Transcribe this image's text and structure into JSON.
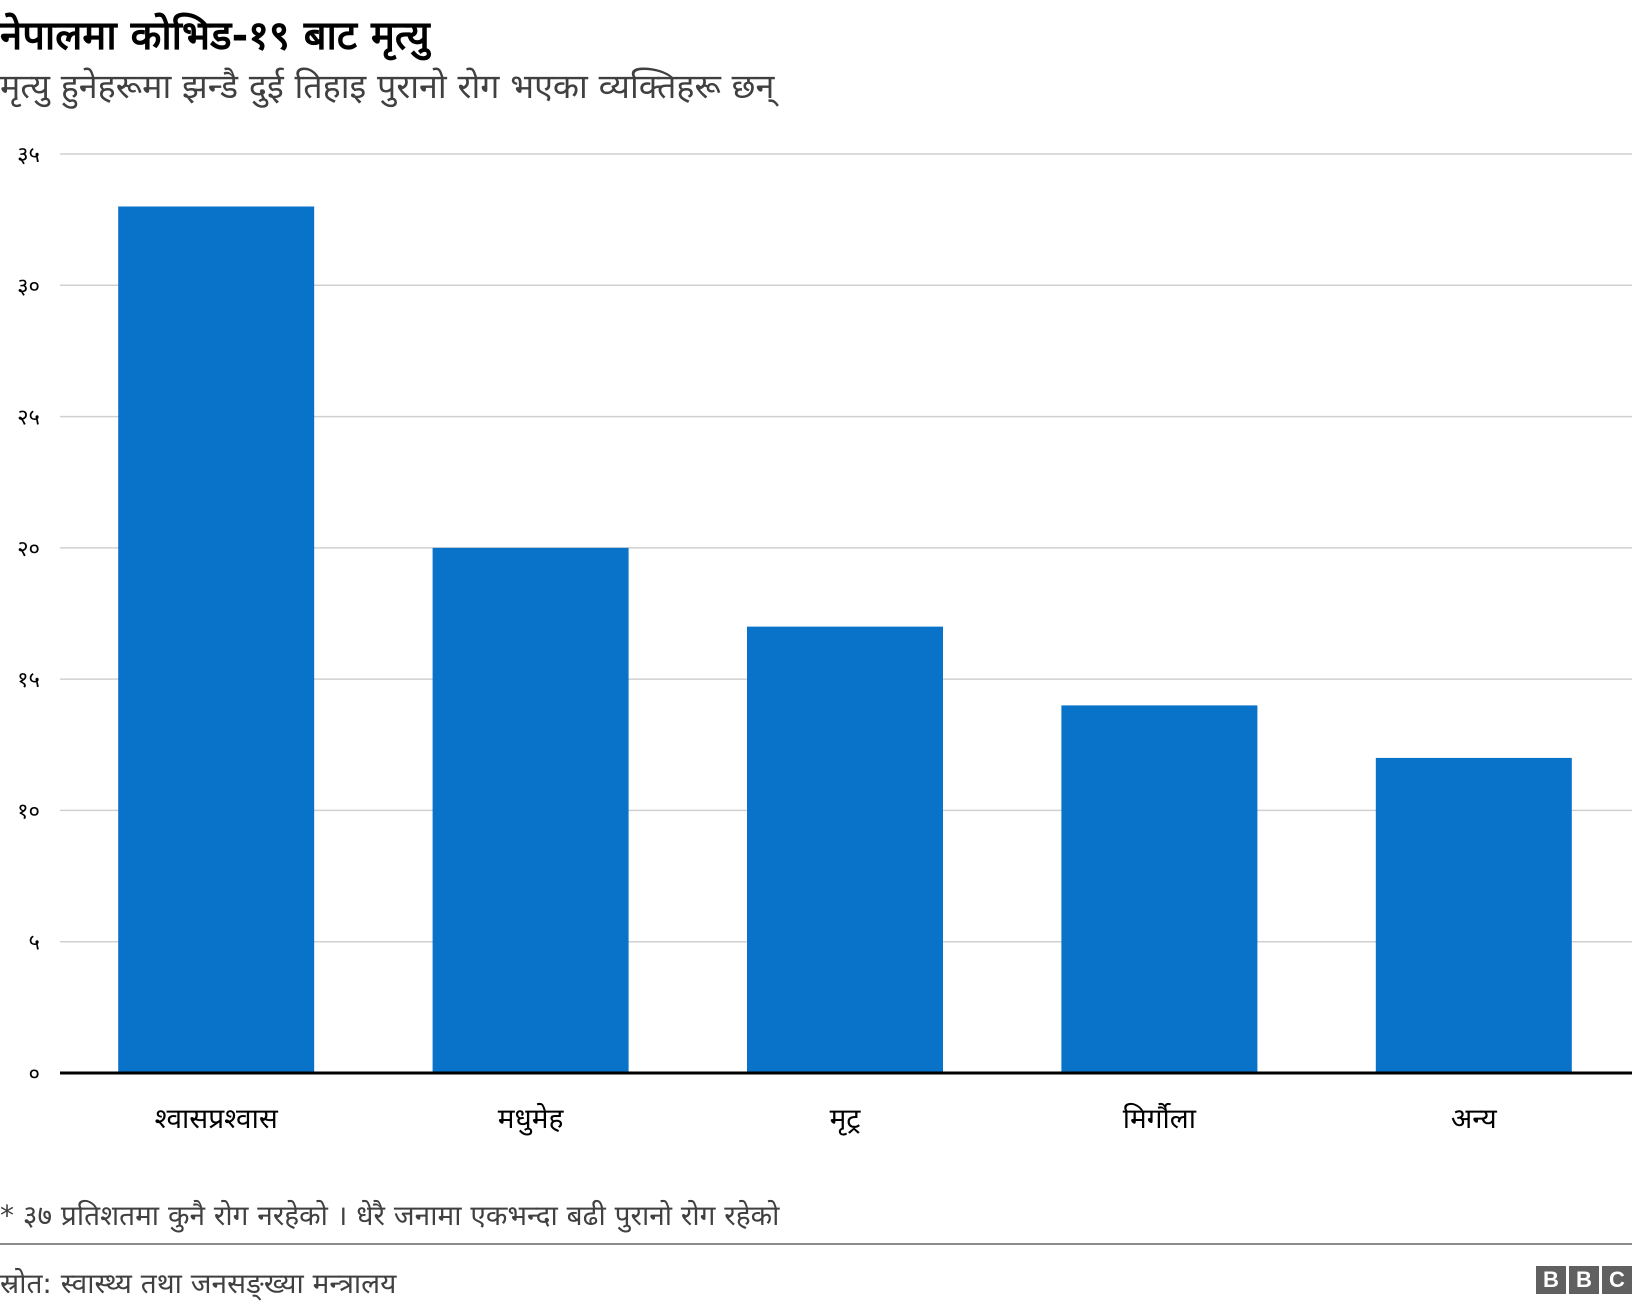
{
  "header": {
    "title": "नेपालमा कोभिड-१९ बाट मृत्यु",
    "subtitle": "मृत्यु हुनेहरूमा झन्डै दुई तिहाइ पुरानो रोग भएका व्यक्तिहरू छन्"
  },
  "chart_data": {
    "type": "bar",
    "title": "नेपालमा कोभिड-१९ बाट मृत्यु",
    "subtitle": "मृत्यु हुनेहरूमा झन्डै दुई तिहाइ पुरानो रोग भएका व्यक्तिहरू छन्",
    "categories": [
      "श्वासप्रश्वास",
      "मधुमेह",
      "मृट्र",
      "मिर्गौला",
      "अन्य"
    ],
    "values": [
      33,
      20,
      17,
      14,
      12
    ],
    "ylim": [
      0,
      35
    ],
    "yticks": [
      0,
      5,
      10,
      15,
      20,
      25,
      30,
      35
    ],
    "ytick_labels": [
      "०",
      "५",
      "१०",
      "१५",
      "२०",
      "२५",
      "३०",
      "३५"
    ],
    "xlabel": "",
    "ylabel": "",
    "grid": true,
    "legend": "none",
    "bar_color": "#0873c8",
    "grid_color": "#d0d0d0",
    "axis_color": "#000000"
  },
  "footer": {
    "note": "* ३७ प्रतिशतमा कुनै रोग नरहेको । धेरै जनामा एकभन्दा बढी पुरानो रोग रहेको",
    "source": "स्रोत: स्वास्थ्य तथा जनसङ्ख्या मन्त्रालय",
    "logo_letters": [
      "B",
      "B",
      "C"
    ]
  }
}
